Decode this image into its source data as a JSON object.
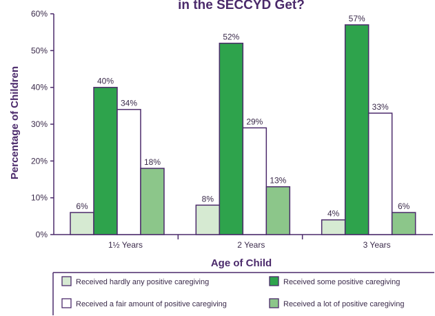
{
  "chart_data": {
    "type": "bar",
    "title": "in the SECCYD Get?",
    "xlabel": "Age of Child",
    "ylabel": "Percentage of Children",
    "ylim": [
      0,
      60
    ],
    "y_ticks": [
      "0%",
      "10%",
      "20%",
      "30%",
      "40%",
      "50%",
      "60%"
    ],
    "categories": [
      "1½ Years",
      "2 Years",
      "3 Years"
    ],
    "series": [
      {
        "name": "Received hardly any positive caregiving",
        "color": "#d6ead2",
        "values": [
          6,
          8,
          4
        ],
        "labels": [
          "6%",
          "8%",
          "4%"
        ]
      },
      {
        "name": "Received some positive caregiving",
        "color": "#2ea34c",
        "values": [
          40,
          52,
          57
        ],
        "labels": [
          "40%",
          "52%",
          "57%"
        ]
      },
      {
        "name": "Received a fair amount of positive caregiving",
        "color": "#ffffff",
        "values": [
          34,
          29,
          33
        ],
        "labels": [
          "34%",
          "29%",
          "33%"
        ]
      },
      {
        "name": "Received a lot of positive caregiving",
        "color": "#8cc68a",
        "values": [
          18,
          13,
          6
        ],
        "labels": [
          "18%",
          "13%",
          "6%"
        ]
      }
    ],
    "grid": false,
    "legend_position": "bottom"
  }
}
